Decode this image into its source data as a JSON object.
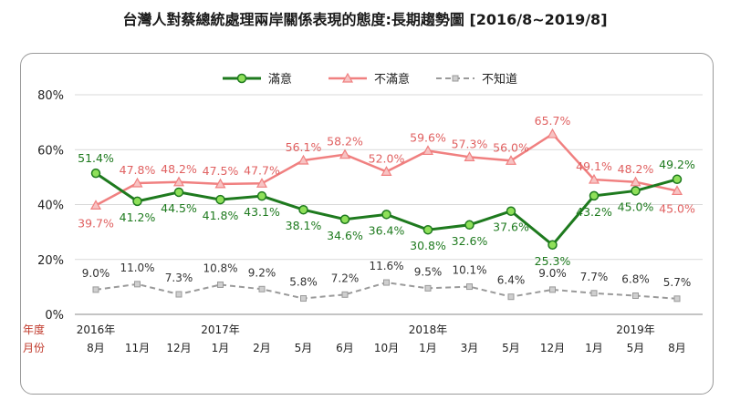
{
  "title": "台灣人對蔡總統處理兩岸關係表現的態度:長期趨勢圖  [2016/8~2019/8]",
  "colors": {
    "satisfied": "#1e7a1e",
    "satisfied_marker": "#8fe05a",
    "dissatisfied": "#f08080",
    "unknown": "#9a9a9a",
    "axis_label": "#c0392b"
  },
  "chart_data": {
    "type": "line",
    "title": "台灣人對蔡總統處理兩岸關係表現的態度:長期趨勢圖  [2016/8~2019/8]",
    "row_labels": {
      "year": "年度",
      "month": "月份"
    },
    "year_labels": [
      "2016年",
      "2017年",
      "2018年",
      "2019年"
    ],
    "year_label_at": [
      0,
      3,
      8,
      13
    ],
    "categories": [
      "8月",
      "11月",
      "12月",
      "1月",
      "2月",
      "5月",
      "6月",
      "10月",
      "1月",
      "3月",
      "5月",
      "12月",
      "1月",
      "5月",
      "8月"
    ],
    "series": [
      {
        "name": "滿意",
        "values": [
          51.4,
          41.2,
          44.5,
          41.8,
          43.1,
          38.1,
          34.6,
          36.4,
          30.8,
          32.6,
          37.6,
          25.3,
          43.2,
          45.0,
          49.2
        ]
      },
      {
        "name": "不滿意",
        "values": [
          39.7,
          47.8,
          48.2,
          47.5,
          47.7,
          56.1,
          58.2,
          52.0,
          59.6,
          57.3,
          56.0,
          65.7,
          49.1,
          48.2,
          45.0
        ]
      },
      {
        "name": "不知道",
        "values": [
          9.0,
          11.0,
          7.3,
          10.8,
          9.2,
          5.8,
          7.2,
          11.6,
          9.5,
          10.1,
          6.4,
          9.0,
          7.7,
          6.8,
          5.7
        ]
      }
    ],
    "ylim": [
      0,
      80
    ],
    "yticks": [
      "0%",
      "20%",
      "40%",
      "60%",
      "80%"
    ],
    "value_suffix": "%",
    "legend_position": "top-center"
  }
}
